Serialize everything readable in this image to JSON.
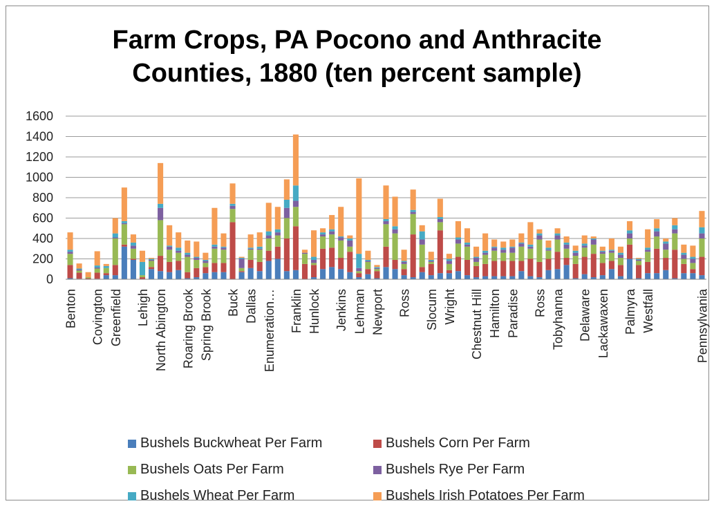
{
  "chart_data": {
    "type": "bar",
    "stacked": true,
    "title": "Farm Crops, PA Pocono and Anthracite Counties, 1880 (ten percent sample)",
    "title_lines": [
      "Farm Crops, PA Pocono and Anthracite",
      "Counties, 1880 (ten percent sample)"
    ],
    "ylim": [
      0,
      1600
    ],
    "yticks": [
      0,
      200,
      400,
      600,
      800,
      1000,
      1200,
      1400,
      1600
    ],
    "grid": true,
    "legend_position": "bottom",
    "category_count": 71,
    "visible_tick_labels": [
      {
        "index": 0,
        "label": "Benton"
      },
      {
        "index": 3,
        "label": "Covington"
      },
      {
        "index": 5,
        "label": "Greenfield"
      },
      {
        "index": 8,
        "label": "Lehigh"
      },
      {
        "index": 10,
        "label": "North Abington"
      },
      {
        "index": 13,
        "label": "Roaring Brook"
      },
      {
        "index": 15,
        "label": "Spring Brook"
      },
      {
        "index": 18,
        "label": "Buck"
      },
      {
        "index": 20,
        "label": "Dallas"
      },
      {
        "index": 22,
        "label": "Enumeration…"
      },
      {
        "index": 25,
        "label": "Franklin"
      },
      {
        "index": 27,
        "label": "Hunlock"
      },
      {
        "index": 30,
        "label": "Jenkins"
      },
      {
        "index": 32,
        "label": "Lehman"
      },
      {
        "index": 34,
        "label": "Newport"
      },
      {
        "index": 37,
        "label": "Ross"
      },
      {
        "index": 40,
        "label": "Slocum"
      },
      {
        "index": 42,
        "label": "Wright"
      },
      {
        "index": 45,
        "label": "Chestnut Hill"
      },
      {
        "index": 47,
        "label": "Hamilton"
      },
      {
        "index": 49,
        "label": "Paradise"
      },
      {
        "index": 52,
        "label": "Ross"
      },
      {
        "index": 54,
        "label": "Tobyhanna"
      },
      {
        "index": 57,
        "label": "Delaware"
      },
      {
        "index": 59,
        "label": "Lackawaxen"
      },
      {
        "index": 62,
        "label": "Palmyra"
      },
      {
        "index": 64,
        "label": "Westfall"
      },
      {
        "index": 70,
        "label": "Pennsylvania"
      }
    ],
    "series": [
      {
        "name": "Bushels Buckwheat Per Farm",
        "color": "#4a7ebb",
        "values": [
          10,
          5,
          0,
          5,
          40,
          40,
          320,
          190,
          0,
          100,
          80,
          70,
          90,
          10,
          20,
          60,
          70,
          70,
          0,
          70,
          110,
          80,
          180,
          200,
          80,
          90,
          0,
          20,
          100,
          120,
          100,
          70,
          20,
          50,
          10,
          120,
          100,
          40,
          20,
          70,
          40,
          60,
          60,
          80,
          40,
          20,
          30,
          30,
          30,
          30,
          80,
          30,
          20,
          90,
          100,
          140,
          10,
          50,
          20,
          40,
          100,
          30,
          200,
          10,
          60,
          60,
          90,
          10,
          60,
          60,
          40
        ]
      },
      {
        "name": "Bushels Corn Per Farm",
        "color": "#be4b48",
        "values": [
          130,
          60,
          10,
          60,
          20,
          100,
          20,
          10,
          20,
          20,
          150,
          100,
          90,
          60,
          90,
          60,
          90,
          90,
          560,
          10,
          80,
          90,
          100,
          120,
          320,
          430,
          150,
          120,
          200,
          190,
          110,
          200,
          40,
          50,
          70,
          200,
          90,
          60,
          420,
          50,
          110,
          420,
          30,
          140,
          150,
          110,
          120,
          150,
          150,
          150,
          100,
          170,
          150,
          110,
          170,
          70,
          140,
          170,
          230,
          120,
          80,
          110,
          140,
          130,
          110,
          240,
          120,
          280,
          90,
          40,
          180
        ]
      },
      {
        "name": "Bushels Oats Per Farm",
        "color": "#98b954",
        "values": [
          110,
          20,
          10,
          40,
          50,
          260,
          200,
          100,
          20,
          60,
          350,
          120,
          80,
          150,
          80,
          40,
          140,
          130,
          130,
          30,
          100,
          120,
          120,
          110,
          200,
          190,
          100,
          20,
          120,
          130,
          170,
          50,
          20,
          70,
          20,
          220,
          260,
          50,
          200,
          220,
          20,
          80,
          60,
          130,
          130,
          40,
          90,
          100,
          80,
          80,
          140,
          100,
          220,
          80,
          120,
          90,
          80,
          90,
          90,
          90,
          80,
          70,
          60,
          40,
          100,
          120,
          80,
          160,
          50,
          60,
          180
        ]
      },
      {
        "name": "Bushels Rye Per Farm",
        "color": "#7d60a0",
        "values": [
          20,
          10,
          0,
          10,
          0,
          10,
          10,
          30,
          0,
          10,
          120,
          30,
          20,
          20,
          20,
          20,
          20,
          20,
          30,
          90,
          10,
          10,
          30,
          30,
          100,
          60,
          10,
          30,
          20,
          30,
          30,
          60,
          30,
          10,
          10,
          30,
          40,
          20,
          20,
          50,
          10,
          30,
          30,
          40,
          20,
          40,
          20,
          30,
          30,
          50,
          30,
          20,
          40,
          10,
          40,
          40,
          30,
          20,
          50,
          20,
          20,
          30,
          50,
          10,
          20,
          50,
          60,
          40,
          40,
          40,
          50
        ]
      },
      {
        "name": "Bushels Wheat Per Farm",
        "color": "#46aac4",
        "values": [
          20,
          10,
          0,
          20,
          20,
          40,
          20,
          30,
          130,
          10,
          40,
          10,
          30,
          20,
          10,
          10,
          20,
          10,
          20,
          10,
          10,
          20,
          40,
          30,
          80,
          150,
          0,
          30,
          20,
          20,
          10,
          20,
          140,
          10,
          10,
          20,
          30,
          10,
          20,
          80,
          10,
          20,
          20,
          20,
          20,
          10,
          20,
          10,
          20,
          10,
          10,
          20,
          20,
          20,
          20,
          20,
          20,
          20,
          10,
          10,
          10,
          20,
          30,
          10,
          20,
          30,
          20,
          40,
          20,
          20,
          60
        ]
      },
      {
        "name": "Bushels Irish Potatoes Per Farm",
        "color": "#f59d55",
        "values": [
          170,
          50,
          50,
          140,
          20,
          150,
          330,
          80,
          110,
          10,
          400,
          200,
          150,
          120,
          150,
          70,
          360,
          130,
          200,
          10,
          130,
          140,
          280,
          220,
          200,
          500,
          30,
          260,
          40,
          140,
          290,
          30,
          740,
          90,
          20,
          330,
          290,
          110,
          200,
          60,
          80,
          180,
          50,
          160,
          140,
          100,
          170,
          70,
          60,
          70,
          90,
          220,
          40,
          70,
          50,
          60,
          50,
          80,
          20,
          40,
          110,
          60,
          90,
          10,
          180,
          90,
          30,
          70,
          80,
          110,
          160
        ]
      }
    ]
  }
}
